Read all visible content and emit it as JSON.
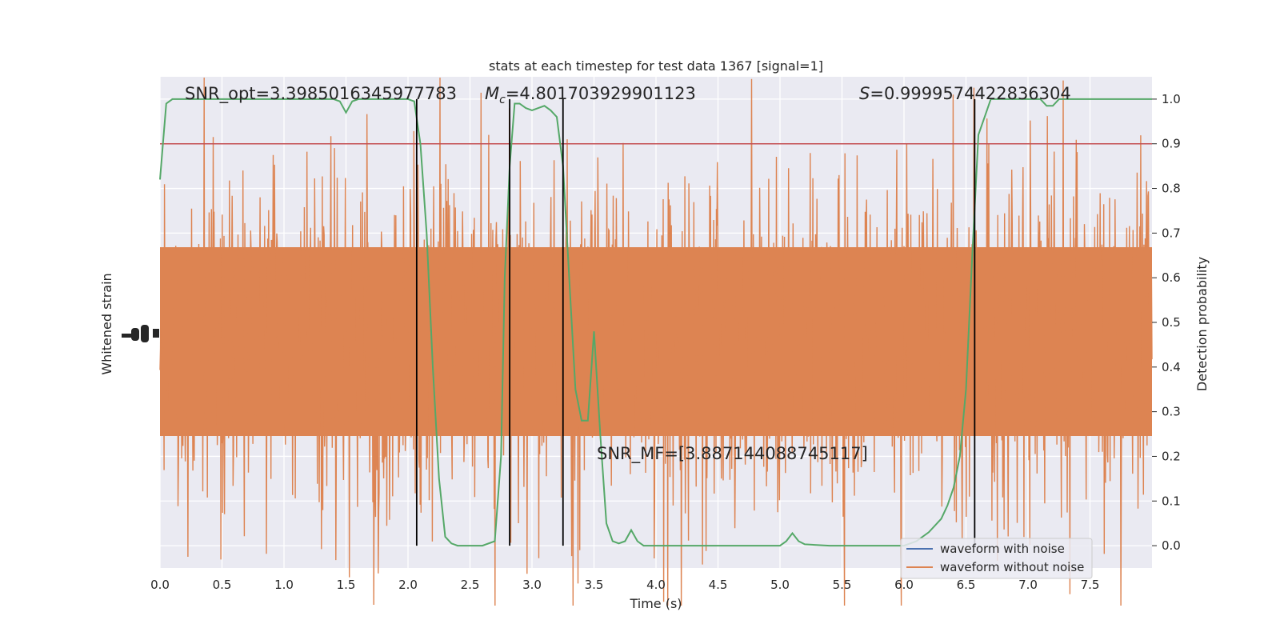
{
  "chart_data": {
    "type": "line",
    "title": "stats at each timestep for test data 1367 [signal=1]",
    "xlabel": "Time (s)",
    "ylabel_left": "Whitened strain",
    "ylabel_right": "Detection probability",
    "xlim": [
      0.0,
      8.0
    ],
    "ylim_right": [
      -0.05,
      1.05
    ],
    "x_ticks": [
      "0.0",
      "0.5",
      "1.0",
      "1.5",
      "2.0",
      "2.5",
      "3.0",
      "3.5",
      "4.0",
      "4.5",
      "5.0",
      "5.5",
      "6.0",
      "6.5",
      "7.0",
      "7.5"
    ],
    "y_ticks_right": [
      "0.0",
      "0.1",
      "0.2",
      "0.3",
      "0.4",
      "0.5",
      "0.6",
      "0.7",
      "0.8",
      "0.9",
      "1.0"
    ],
    "grid": true,
    "legend": {
      "placement": "bottom-right",
      "entries": [
        {
          "label": "waveform with noise",
          "color": "#4c72b0"
        },
        {
          "label": "waveform without noise",
          "color": "#dd8452"
        }
      ]
    },
    "annotations": [
      {
        "text": "SNR_opt=3.3985016345977783"
      },
      {
        "text": "=4.801703929901123",
        "prefix_math": "M",
        "prefix_sub": "c"
      },
      {
        "text": "=0.9999574422836304",
        "prefix_math": "S"
      },
      {
        "text": "SNR_MF=[3.887144088745117]"
      }
    ],
    "threshold": {
      "y": 0.9,
      "color": "#c44e52"
    },
    "vertical_markers_x": [
      2.07,
      2.82,
      3.25,
      6.57
    ],
    "series": [
      {
        "color": "#55a868",
        "axis": "right",
        "x": [
          0.0,
          0.05,
          0.1,
          0.2,
          0.4,
          0.6,
          0.8,
          1.0,
          1.2,
          1.4,
          1.45,
          1.5,
          1.55,
          1.6,
          1.7,
          1.8,
          1.9,
          2.0,
          2.05,
          2.1,
          2.15,
          2.2,
          2.25,
          2.3,
          2.35,
          2.4,
          2.5,
          2.6,
          2.7,
          2.75,
          2.78,
          2.82,
          2.86,
          2.9,
          2.95,
          3.0,
          3.05,
          3.1,
          3.15,
          3.2,
          3.25,
          3.3,
          3.35,
          3.4,
          3.45,
          3.5,
          3.55,
          3.6,
          3.65,
          3.7,
          3.75,
          3.8,
          3.85,
          3.9,
          4.0,
          4.2,
          4.5,
          4.8,
          5.0,
          5.05,
          5.1,
          5.15,
          5.2,
          5.4,
          5.6,
          5.8,
          6.0,
          6.1,
          6.2,
          6.3,
          6.35,
          6.4,
          6.45,
          6.5,
          6.55,
          6.6,
          6.65,
          6.7,
          6.8,
          6.9,
          7.0,
          7.1,
          7.15,
          7.2,
          7.25,
          7.3,
          7.4,
          7.5,
          7.6,
          7.7,
          7.8,
          8.0
        ],
        "y": [
          0.82,
          0.99,
          1.0,
          1.0,
          1.0,
          1.0,
          1.0,
          1.0,
          1.0,
          1.0,
          0.995,
          0.97,
          0.995,
          1.0,
          1.0,
          1.0,
          1.0,
          1.0,
          0.995,
          0.9,
          0.7,
          0.4,
          0.15,
          0.02,
          0.005,
          0.0,
          0.0,
          0.0,
          0.01,
          0.2,
          0.6,
          0.85,
          0.99,
          0.99,
          0.98,
          0.975,
          0.98,
          0.985,
          0.975,
          0.96,
          0.85,
          0.6,
          0.35,
          0.28,
          0.28,
          0.48,
          0.25,
          0.05,
          0.01,
          0.005,
          0.01,
          0.035,
          0.01,
          0.0,
          0.0,
          0.0,
          0.0,
          0.0,
          0.0,
          0.01,
          0.028,
          0.01,
          0.003,
          0.0,
          0.0,
          0.0,
          0.0,
          0.01,
          0.03,
          0.06,
          0.09,
          0.13,
          0.2,
          0.35,
          0.65,
          0.92,
          0.96,
          1.0,
          1.0,
          1.0,
          1.0,
          1.0,
          0.985,
          0.985,
          1.0,
          1.0,
          1.0,
          1.0,
          1.0,
          1.0,
          1.0,
          1.0
        ]
      }
    ]
  }
}
